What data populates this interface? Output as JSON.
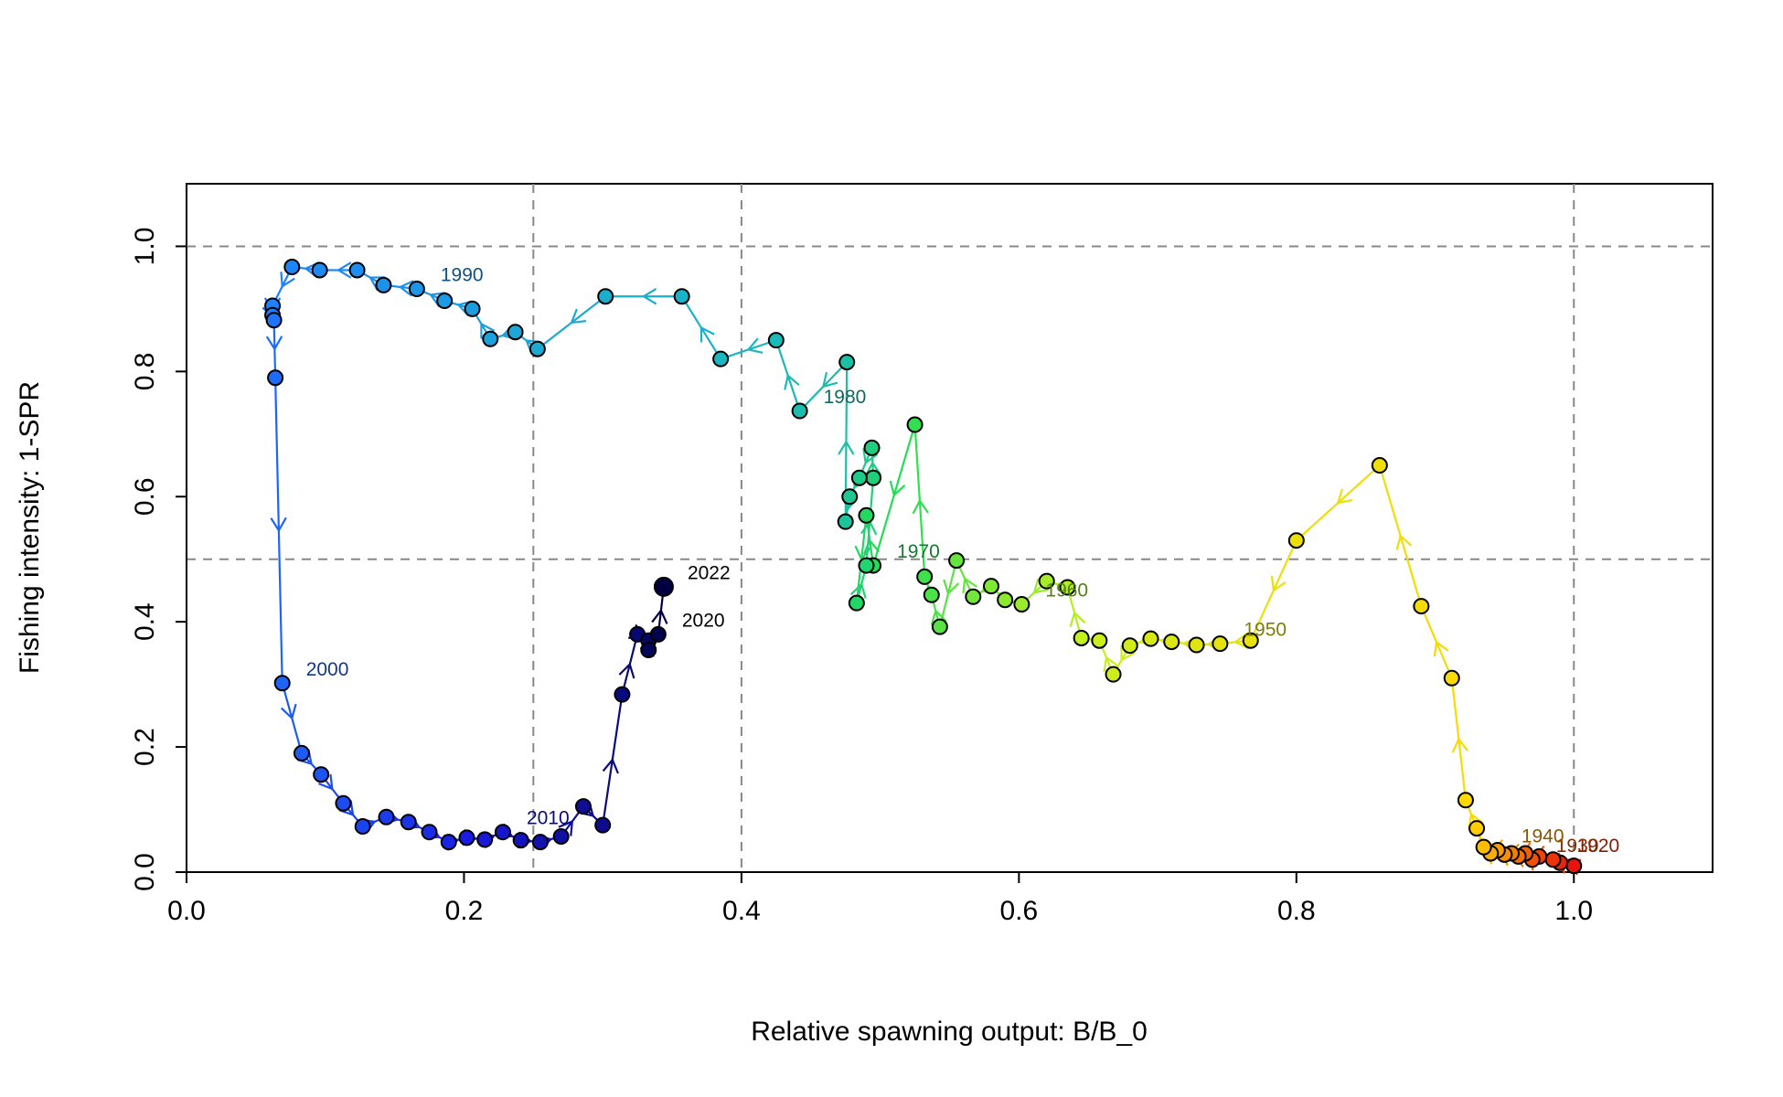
{
  "chart_data": {
    "type": "phase",
    "x_label": "Relative spawning output: B/B_0",
    "y_label": "Fishing intensity: 1-SPR",
    "xlim": [
      0,
      1.1
    ],
    "ylim": [
      0,
      1.1
    ],
    "xticks": [
      {
        "value": 0,
        "label": "0.0"
      },
      0.2,
      0.4,
      0.6,
      0.8,
      {
        "value": 1,
        "label": "1.0"
      }
    ],
    "yticks": [
      {
        "value": 0,
        "label": "0.0"
      },
      0.2,
      0.4,
      0.6,
      0.8,
      {
        "value": 1,
        "label": "1.0"
      }
    ],
    "vlines": [
      0.25,
      0.4,
      1
    ],
    "hlines": [
      0.5,
      1
    ],
    "color_stops": [
      "#e8140c",
      "#ffd700",
      "#c8f01c",
      "#22dd55",
      "#1ab3c8",
      "#1e7fff",
      "#1a1ae0",
      "#000040"
    ],
    "x": [
      1.0,
      0.99,
      0.985,
      0.975,
      0.97,
      0.965,
      0.96,
      0.955,
      0.95,
      0.945,
      0.94,
      0.935,
      0.93,
      0.922,
      0.912,
      0.89,
      0.86,
      0.8,
      0.767,
      0.745,
      0.728,
      0.71,
      0.695,
      0.68,
      0.668,
      0.658,
      0.645,
      0.635,
      0.62,
      0.602,
      0.59,
      0.58,
      0.567,
      0.555,
      0.543,
      0.537,
      0.532,
      0.525,
      0.495,
      0.49,
      0.483,
      0.49,
      0.495,
      0.494,
      0.485,
      0.478,
      0.475,
      0.476,
      0.442,
      0.425,
      0.385,
      0.357,
      0.302,
      0.253,
      0.237,
      0.219,
      0.206,
      0.186,
      0.166,
      0.142,
      0.123,
      0.096,
      0.076,
      0.062,
      0.062,
      0.063,
      0.064,
      0.069,
      0.083,
      0.097,
      0.113,
      0.127,
      0.144,
      0.16,
      0.175,
      0.189,
      0.202,
      0.215,
      0.228,
      0.241,
      0.255,
      0.27,
      0.286,
      0.3,
      0.314,
      0.325,
      0.333,
      0.333,
      0.34,
      0.344
    ],
    "y": [
      0.01,
      0.015,
      0.02,
      0.025,
      0.02,
      0.03,
      0.025,
      0.03,
      0.028,
      0.035,
      0.03,
      0.04,
      0.07,
      0.115,
      0.31,
      0.425,
      0.65,
      0.53,
      0.37,
      0.365,
      0.363,
      0.368,
      0.373,
      0.362,
      0.316,
      0.37,
      0.374,
      0.455,
      0.465,
      0.428,
      0.435,
      0.457,
      0.44,
      0.498,
      0.392,
      0.443,
      0.472,
      0.715,
      0.49,
      0.57,
      0.43,
      0.49,
      0.63,
      0.678,
      0.63,
      0.6,
      0.56,
      0.815,
      0.737,
      0.85,
      0.82,
      0.92,
      0.92,
      0.836,
      0.863,
      0.852,
      0.9,
      0.913,
      0.932,
      0.938,
      0.962,
      0.962,
      0.967,
      0.905,
      0.89,
      0.882,
      0.79,
      0.302,
      0.19,
      0.156,
      0.11,
      0.073,
      0.088,
      0.08,
      0.064,
      0.048,
      0.055,
      0.052,
      0.064,
      0.051,
      0.048,
      0.057,
      0.105,
      0.075,
      0.284,
      0.38,
      0.37,
      0.355,
      0.38,
      0.456
    ],
    "labels": [
      null,
      null,
      "1920",
      null,
      "1930",
      null,
      null,
      null,
      null,
      "1940",
      null,
      null,
      null,
      null,
      null,
      null,
      null,
      null,
      null,
      "1950",
      null,
      null,
      null,
      null,
      null,
      null,
      null,
      null,
      null,
      "1960",
      null,
      null,
      null,
      null,
      null,
      null,
      null,
      null,
      "1970",
      null,
      null,
      null,
      null,
      null,
      null,
      null,
      null,
      null,
      "1980",
      null,
      null,
      null,
      null,
      null,
      null,
      null,
      null,
      null,
      "1990",
      null,
      null,
      null,
      null,
      null,
      null,
      null,
      null,
      "2000",
      null,
      null,
      null,
      null,
      null,
      null,
      null,
      null,
      null,
      null,
      "2010",
      null,
      null,
      null,
      null,
      null,
      null,
      null,
      null,
      null,
      "2020",
      "2022"
    ]
  }
}
